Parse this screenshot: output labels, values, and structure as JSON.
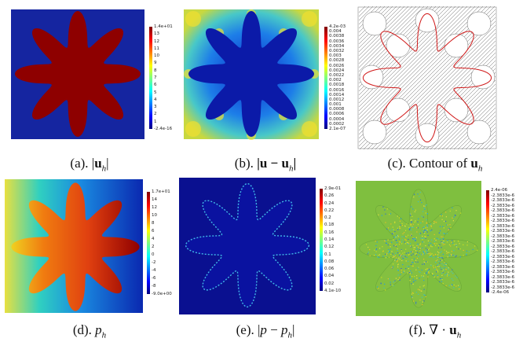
{
  "panels": [
    {
      "id": "a",
      "caption_prefix": "(a).",
      "caption_math": "|uₕ|",
      "colorbar": {
        "top": "1.4e+01",
        "labels": [
          "13",
          "12",
          "11",
          "10",
          "9",
          "8",
          "7",
          "6",
          "5",
          "4",
          "3",
          "2",
          "1"
        ],
        "bottom": "-2.4e-16"
      }
    },
    {
      "id": "b",
      "caption_prefix": "(b).",
      "caption_math": "|u − uₕ|",
      "colorbar": {
        "top": "4.2e-03",
        "labels": [
          "0.004",
          "0.0038",
          "0.0036",
          "0.0034",
          "0.0032",
          "0.003",
          "0.0028",
          "0.0026",
          "0.0024",
          "0.0022",
          "0.002",
          "0.0018",
          "0.0016",
          "0.0014",
          "0.0012",
          "0.001",
          "0.0008",
          "0.0006",
          "0.0004",
          "0.0002"
        ],
        "bottom": "2.1e-07"
      }
    },
    {
      "id": "c",
      "caption_prefix": "(c). Contour of",
      "caption_math": "uₕ",
      "colorbar": null
    },
    {
      "id": "d",
      "caption_prefix": "(d).",
      "caption_math": "pₕ",
      "colorbar": {
        "top": "1.7e+01",
        "labels": [
          "14",
          "12",
          "10",
          "8",
          "6",
          "4",
          "2",
          "0",
          "-2",
          "-4",
          "-6",
          "-8"
        ],
        "bottom": "-9.0e+00"
      }
    },
    {
      "id": "e",
      "caption_prefix": "(e).",
      "caption_math": "|p − pₕ|",
      "colorbar": {
        "top": "2.9e-01",
        "labels": [
          "0.26",
          "0.24",
          "0.22",
          "0.2",
          "0.18",
          "0.16",
          "0.14",
          "0.12",
          "0.1",
          "0.08",
          "0.06",
          "0.04",
          "0.02"
        ],
        "bottom": "4.1e-10"
      }
    },
    {
      "id": "f",
      "caption_prefix": "(f).",
      "caption_math": "∇ · uₕ",
      "colorbar": {
        "top": "2.4e-06",
        "labels": [
          "-2.3833e-6",
          "-2.3833e-6",
          "-2.3833e-6",
          "-2.3833e-6",
          "-2.3833e-6",
          "-2.3833e-6",
          "-2.3833e-6",
          "-2.3833e-6",
          "-2.3833e-6",
          "-2.3833e-6",
          "-2.3833e-6",
          "-2.3833e-6",
          "-2.3833e-6",
          "-2.3833e-6",
          "-2.3833e-6",
          "-2.3833e-6",
          "-2.3833e-6",
          "-2.3833e-6",
          "-2.3833e-6"
        ],
        "bottom": "-2.4e-06"
      }
    }
  ],
  "colors": {
    "jet_dark_blue": "#00007f",
    "jet_red": "#7f0000",
    "star_red": "#8e0000",
    "contour_red": "#d01818",
    "domain_green": "#7fbf3f"
  }
}
